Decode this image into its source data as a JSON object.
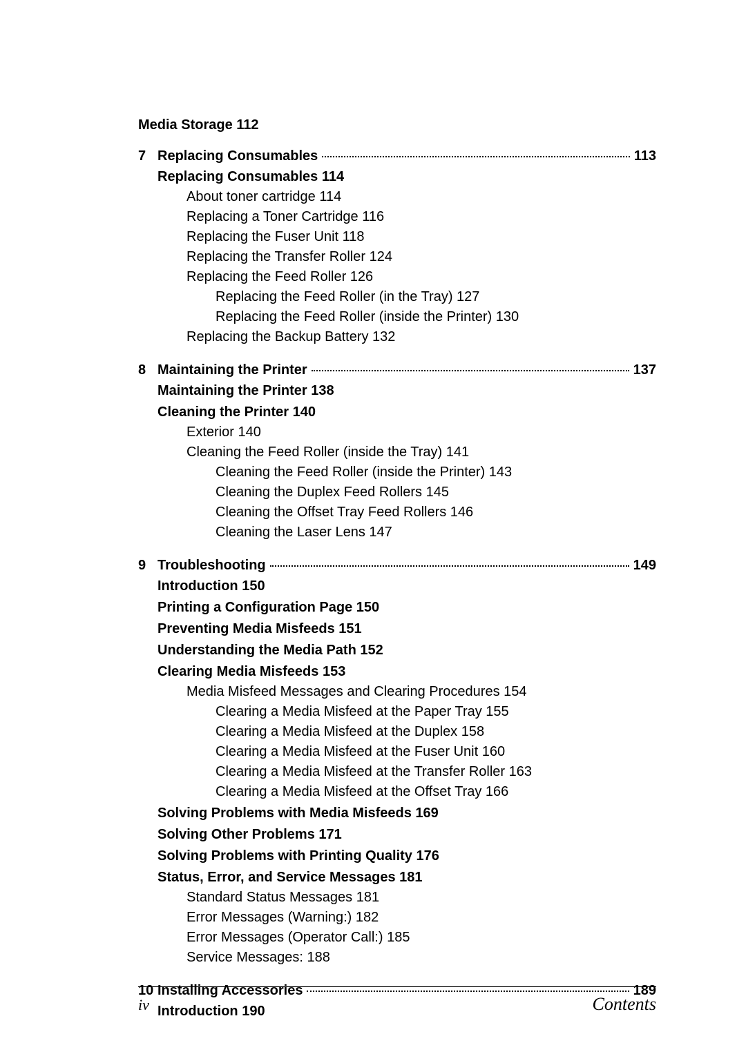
{
  "top_heading": "Media Storage   112",
  "chapters": [
    {
      "num": "7",
      "title": "Replacing Consumables",
      "page": "113",
      "lines": [
        {
          "lvl": "sec",
          "text": "Replacing Consumables   114"
        },
        {
          "lvl": "sub",
          "text": "About toner cartridge    114"
        },
        {
          "lvl": "sub",
          "text": "Replacing a Toner Cartridge    116"
        },
        {
          "lvl": "sub",
          "text": "Replacing the Fuser Unit    118"
        },
        {
          "lvl": "sub",
          "text": "Replacing the Transfer Roller    124"
        },
        {
          "lvl": "sub",
          "text": "Replacing the Feed Roller    126"
        },
        {
          "lvl": "sub2",
          "text": "Replacing the Feed Roller (in the Tray) 127"
        },
        {
          "lvl": "sub2",
          "text": "Replacing the Feed Roller (inside the Printer) 130"
        },
        {
          "lvl": "sub",
          "text": "Replacing the Backup Battery    132"
        }
      ]
    },
    {
      "num": "8",
      "title": "Maintaining the Printer",
      "page": "137",
      "lines": [
        {
          "lvl": "sec",
          "text": "Maintaining the Printer   138"
        },
        {
          "lvl": "sec",
          "text": "Cleaning the Printer   140"
        },
        {
          "lvl": "sub",
          "text": "Exterior    140"
        },
        {
          "lvl": "sub",
          "text": "Cleaning the Feed Roller (inside the Tray)    141"
        },
        {
          "lvl": "sub2",
          "text": "Cleaning the Feed Roller (inside the Printer) 143"
        },
        {
          "lvl": "sub2",
          "text": "Cleaning the Duplex Feed Rollers 145"
        },
        {
          "lvl": "sub2",
          "text": "Cleaning the Offset Tray Feed Rollers 146"
        },
        {
          "lvl": "sub2",
          "text": "Cleaning the Laser Lens 147"
        }
      ]
    },
    {
      "num": "9",
      "title": "Troubleshooting",
      "page": "149",
      "lines": [
        {
          "lvl": "sec",
          "text": "Introduction   150"
        },
        {
          "lvl": "sec",
          "text": "Printing a Configuration Page   150"
        },
        {
          "lvl": "sec",
          "text": "Preventing Media Misfeeds   151"
        },
        {
          "lvl": "sec",
          "text": "Understanding the Media Path   152"
        },
        {
          "lvl": "sec",
          "text": "Clearing Media Misfeeds    153"
        },
        {
          "lvl": "sub",
          "text": "Media Misfeed Messages and Clearing Procedures    154"
        },
        {
          "lvl": "sub2",
          "text": "Clearing a Media Misfeed at the Paper Tray 155"
        },
        {
          "lvl": "sub2",
          "text": "Clearing a Media Misfeed at the Duplex 158"
        },
        {
          "lvl": "sub2",
          "text": "Clearing a Media Misfeed at the Fuser Unit 160"
        },
        {
          "lvl": "sub2",
          "text": "Clearing a Media Misfeed at the Transfer Roller 163"
        },
        {
          "lvl": "sub2",
          "text": "Clearing a Media Misfeed at the Offset Tray 166"
        },
        {
          "lvl": "sec",
          "text": "Solving Problems with Media Misfeeds   169"
        },
        {
          "lvl": "sec",
          "text": "Solving Other Problems   171"
        },
        {
          "lvl": "sec",
          "text": "Solving Problems with Printing Quality   176"
        },
        {
          "lvl": "sec",
          "text": "Status, Error, and Service Messages   181"
        },
        {
          "lvl": "sub",
          "text": "Standard Status Messages    181"
        },
        {
          "lvl": "sub",
          "text": "Error Messages (Warning:)    182"
        },
        {
          "lvl": "sub",
          "text": "Error Messages (Operator Call:)    185"
        },
        {
          "lvl": "sub",
          "text": "Service Messages:    188"
        }
      ]
    },
    {
      "num": "10",
      "title": "Installing Accessories",
      "page": "189",
      "lines": [
        {
          "lvl": "sec",
          "text": "Introduction   190"
        }
      ]
    }
  ],
  "footer": {
    "left": "iv",
    "right": "Contents"
  }
}
